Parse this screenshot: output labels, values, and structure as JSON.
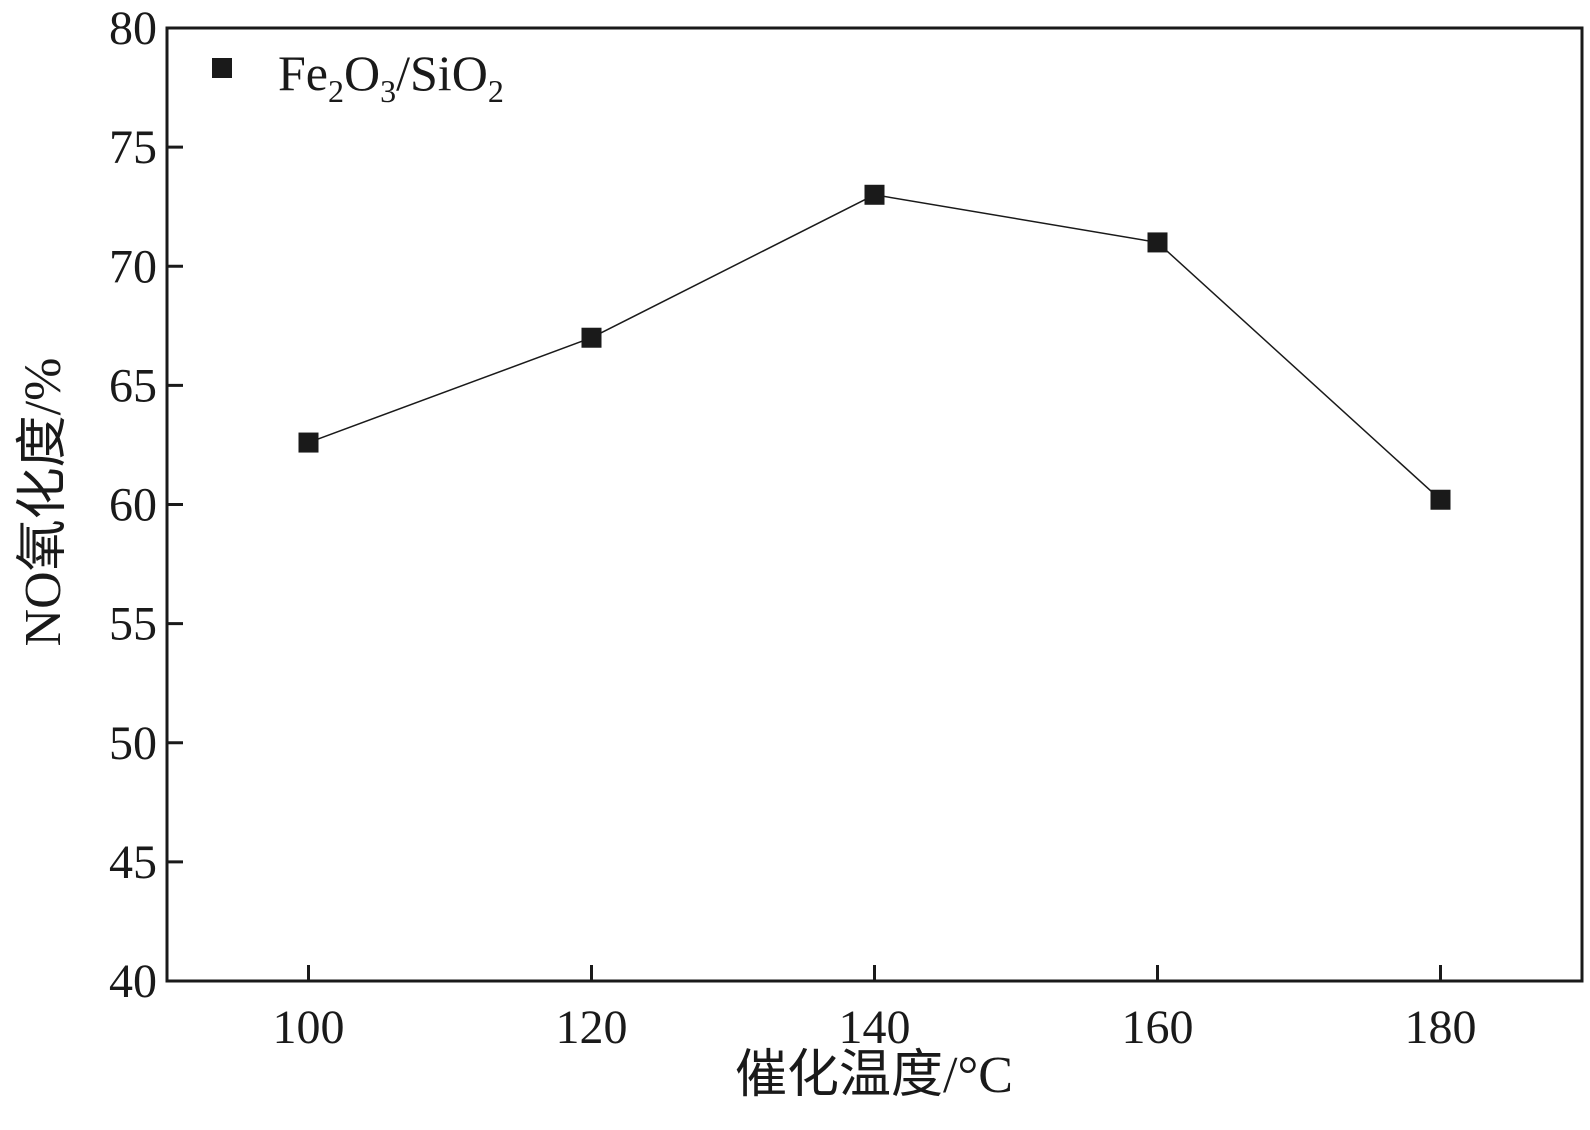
{
  "chart_data": {
    "type": "line",
    "title": "",
    "xlabel": "催化温度/°C",
    "ylabel": "NO氧化度/%",
    "xlim": [
      90,
      190
    ],
    "ylim": [
      40,
      80
    ],
    "xticks": [
      100,
      120,
      140,
      160,
      180
    ],
    "yticks": [
      40,
      45,
      50,
      55,
      60,
      65,
      70,
      75,
      80
    ],
    "grid": false,
    "legend_position": "top-left",
    "series": [
      {
        "name": "Fe2O3/SiO2",
        "legend_label": {
          "parts": [
            "Fe",
            "2",
            "O",
            "3",
            "/SiO",
            "2"
          ]
        },
        "marker": "square",
        "color": "#1a1a1a",
        "x": [
          100,
          120,
          140,
          160,
          180
        ],
        "y": [
          62.6,
          67.0,
          73.0,
          71.0,
          60.2
        ]
      }
    ]
  }
}
